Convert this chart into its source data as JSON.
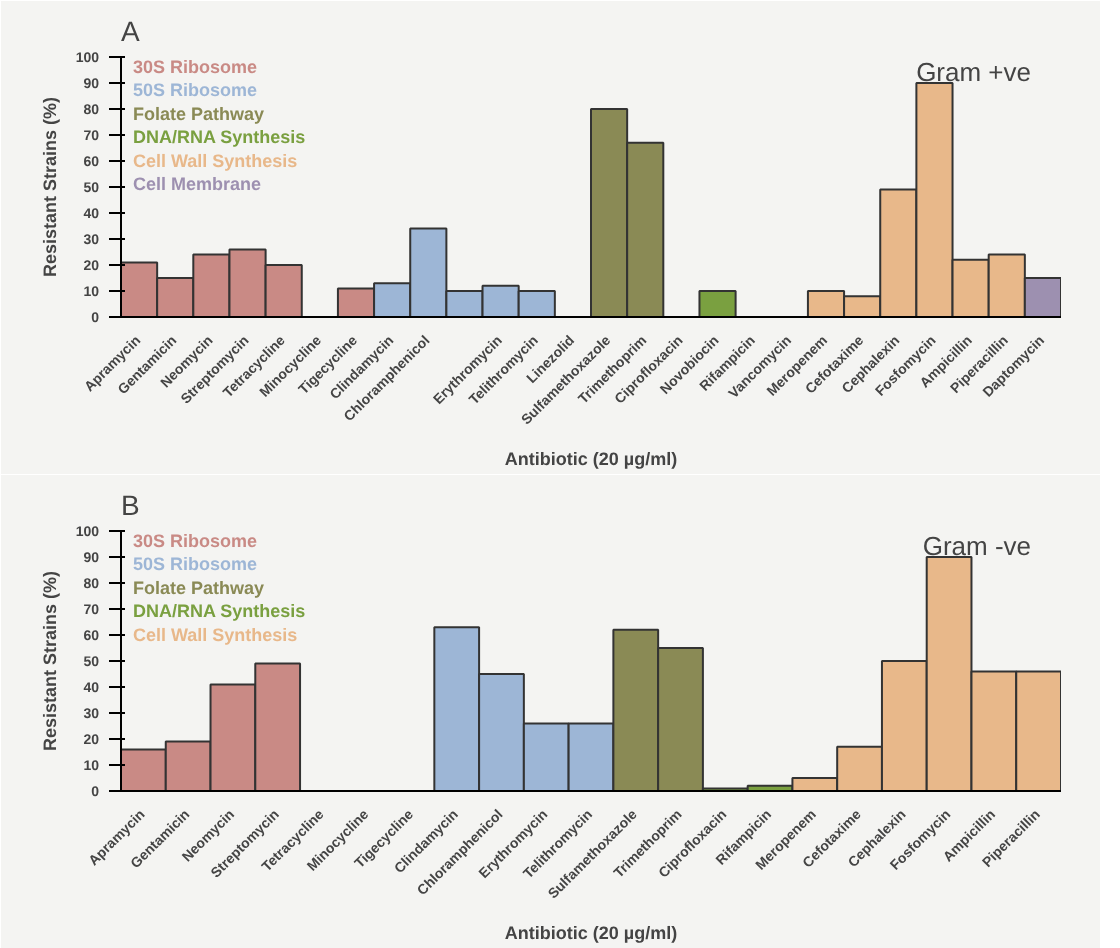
{
  "chart_data": [
    {
      "type": "bar",
      "title": "A",
      "xlabel": "Antibiotic (20 µg/ml)",
      "ylabel": "Resistant Strains (%)",
      "annotations": [
        "Gram +ve"
      ],
      "categories": [
        "Apramycin",
        "Gentamicin",
        "Neomycin",
        "Streptomycin",
        "Tetracycline",
        "Minocycline",
        "Tigecycline",
        "Clindamycin",
        "Chloramphenicol",
        null,
        "Erythromycin",
        "Telithromycin",
        "Linezolid",
        "Sulfamethoxazole",
        "Trimethoprim",
        "Ciprofloxacin",
        "Novobiocin",
        "Rifampicin",
        "Vancomycin",
        "Meropenem",
        "Cefotaxime",
        "Cephalexin",
        "Fosfomycin",
        "Ampicillin",
        "Piperacillin",
        "Daptomycin"
      ],
      "series": [
        {
          "name": "30S Ribosome",
          "color": "#c98a85",
          "values": [
            21,
            15,
            24,
            26,
            20,
            null,
            11,
            null,
            null,
            null,
            null,
            null,
            null,
            null,
            null,
            null,
            null,
            null,
            null,
            null,
            null,
            null,
            null,
            null,
            null,
            null
          ]
        },
        {
          "name": "50S Ribosome",
          "color": "#9db6d6",
          "values": [
            null,
            null,
            null,
            null,
            null,
            null,
            null,
            13,
            34,
            10,
            12,
            10,
            null,
            null,
            null,
            null,
            null,
            null,
            null,
            null,
            null,
            null,
            null,
            null,
            null,
            null
          ]
        },
        {
          "name": "Folate Pathway",
          "color": "#8a8a55",
          "values": [
            null,
            null,
            null,
            null,
            null,
            null,
            null,
            null,
            null,
            null,
            null,
            null,
            null,
            80,
            67,
            null,
            null,
            null,
            null,
            null,
            null,
            null,
            null,
            null,
            null,
            null
          ]
        },
        {
          "name": "DNA/RNA Synthesis",
          "color": "#7aa040",
          "values": [
            null,
            null,
            null,
            null,
            null,
            null,
            null,
            null,
            null,
            null,
            null,
            null,
            null,
            null,
            null,
            null,
            10,
            null,
            null,
            null,
            null,
            null,
            null,
            null,
            null,
            null
          ]
        },
        {
          "name": "Cell Wall Synthesis",
          "color": "#e8b88a",
          "values": [
            null,
            null,
            null,
            null,
            null,
            null,
            null,
            null,
            null,
            null,
            null,
            null,
            null,
            null,
            null,
            null,
            null,
            null,
            null,
            10,
            8,
            49,
            90,
            22,
            24,
            null
          ]
        },
        {
          "name": "Cell Membrane",
          "color": "#9d90b0",
          "values": [
            null,
            null,
            null,
            null,
            null,
            null,
            null,
            null,
            null,
            null,
            null,
            null,
            null,
            null,
            null,
            null,
            null,
            null,
            null,
            null,
            null,
            null,
            null,
            null,
            null,
            15
          ]
        }
      ],
      "ylim": [
        0,
        100
      ],
      "yticks": [
        0,
        10,
        20,
        30,
        40,
        50,
        60,
        70,
        80,
        90,
        100
      ],
      "grid": false,
      "legend": "top left"
    },
    {
      "type": "bar",
      "title": "B",
      "xlabel": "Antibiotic (20 µg/ml)",
      "ylabel": "Resistant Strains (%)",
      "annotations": [
        "Gram -ve"
      ],
      "categories": [
        "Apramycin",
        "Gentamicin",
        "Neomycin",
        "Streptomycin",
        "Tetracycline",
        "Minocycline",
        "Tigecycline",
        "Clindamycin",
        "Chloramphenicol",
        "Erythromycin",
        "Telithromycin",
        "Sulfamethoxazole",
        "Trimethoprim",
        "Ciprofloxacin",
        "Rifampicin",
        "Meropenem",
        "Cefotaxime",
        "Cephalexin",
        "Fosfomycin",
        "Ampicillin",
        "Piperacillin"
      ],
      "series": [
        {
          "name": "30S Ribosome",
          "color": "#c98a85",
          "values": [
            16,
            19,
            41,
            49,
            null,
            null,
            null,
            null,
            null,
            null,
            null,
            null,
            null,
            null,
            null,
            null,
            null,
            null,
            null,
            null,
            null
          ]
        },
        {
          "name": "50S Ribosome",
          "color": "#9db6d6",
          "values": [
            null,
            null,
            null,
            null,
            null,
            null,
            null,
            63,
            45,
            26,
            26,
            null,
            null,
            null,
            null,
            null,
            null,
            null,
            null,
            null,
            null
          ]
        },
        {
          "name": "Folate Pathway",
          "color": "#8a8a55",
          "values": [
            null,
            null,
            null,
            null,
            null,
            null,
            null,
            null,
            null,
            null,
            null,
            62,
            55,
            null,
            null,
            null,
            null,
            null,
            null,
            null,
            null
          ]
        },
        {
          "name": "DNA/RNA Synthesis",
          "color": "#7aa040",
          "values": [
            null,
            null,
            null,
            null,
            null,
            null,
            null,
            null,
            null,
            null,
            null,
            null,
            null,
            1,
            2,
            null,
            null,
            null,
            null,
            null,
            null
          ]
        },
        {
          "name": "Cell Wall Synthesis",
          "color": "#e8b88a",
          "values": [
            null,
            null,
            null,
            null,
            null,
            null,
            null,
            null,
            null,
            null,
            null,
            null,
            null,
            null,
            null,
            5,
            17,
            50,
            90,
            46,
            46
          ]
        }
      ],
      "ylim": [
        0,
        100
      ],
      "yticks": [
        0,
        10,
        20,
        30,
        40,
        50,
        60,
        70,
        80,
        90,
        100
      ],
      "grid": false,
      "legend": "top left"
    }
  ]
}
